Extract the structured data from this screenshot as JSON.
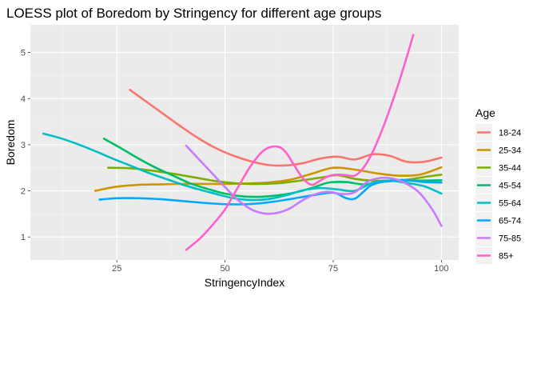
{
  "chart_data": {
    "type": "line",
    "title": "LOESS plot of Boredom by Stringency for different age groups",
    "xlabel": "StringencyIndex",
    "ylabel": "Boredom",
    "xlim": [
      5,
      104
    ],
    "ylim": [
      0.5,
      5.6
    ],
    "x_ticks": [
      25,
      50,
      75,
      100
    ],
    "y_ticks": [
      1,
      2,
      3,
      4,
      5
    ],
    "grid": true,
    "legend_title": "Age",
    "legend_position": "right",
    "series": [
      {
        "name": "18-24",
        "color": "#F8766D",
        "x": [
          28,
          32,
          36,
          40,
          44,
          48,
          52,
          56,
          60,
          64,
          68,
          72,
          76,
          80,
          84,
          88,
          92,
          96,
          100
        ],
        "y": [
          4.19,
          3.92,
          3.65,
          3.38,
          3.13,
          2.92,
          2.76,
          2.64,
          2.56,
          2.55,
          2.6,
          2.7,
          2.74,
          2.68,
          2.79,
          2.76,
          2.63,
          2.63,
          2.72
        ]
      },
      {
        "name": "25-34",
        "color": "#CD9600",
        "x": [
          20,
          25,
          30,
          35,
          40,
          45,
          50,
          55,
          60,
          65,
          70,
          75,
          80,
          85,
          90,
          95,
          100
        ],
        "y": [
          2.0,
          2.09,
          2.13,
          2.14,
          2.15,
          2.15,
          2.15,
          2.16,
          2.18,
          2.24,
          2.37,
          2.5,
          2.46,
          2.38,
          2.33,
          2.35,
          2.51
        ]
      },
      {
        "name": "35-44",
        "color": "#7CAE00",
        "x": [
          23,
          28,
          33,
          38,
          43,
          48,
          53,
          58,
          63,
          68,
          73,
          76,
          80,
          84,
          88,
          92,
          96,
          100
        ],
        "y": [
          2.5,
          2.49,
          2.44,
          2.37,
          2.29,
          2.21,
          2.16,
          2.15,
          2.17,
          2.23,
          2.3,
          2.34,
          2.26,
          2.22,
          2.22,
          2.24,
          2.3,
          2.35
        ]
      },
      {
        "name": "45-54",
        "color": "#00BE67",
        "x": [
          22,
          26,
          30,
          34,
          38,
          42,
          46,
          50,
          54,
          58,
          62,
          66,
          70,
          74,
          78,
          82,
          86,
          90,
          94,
          100
        ],
        "y": [
          3.13,
          2.92,
          2.7,
          2.5,
          2.33,
          2.16,
          2.04,
          1.94,
          1.88,
          1.87,
          1.9,
          1.96,
          2.06,
          2.18,
          2.19,
          2.14,
          2.19,
          2.22,
          2.22,
          2.23
        ]
      },
      {
        "name": "55-64",
        "color": "#00BFC4",
        "x": [
          8,
          12,
          16,
          20,
          24,
          28,
          32,
          36,
          40,
          44,
          48,
          52,
          56,
          60,
          64,
          68,
          72,
          76,
          80,
          84,
          88,
          92,
          96,
          100
        ],
        "y": [
          3.24,
          3.14,
          3.01,
          2.86,
          2.7,
          2.55,
          2.4,
          2.27,
          2.14,
          2.03,
          1.93,
          1.84,
          1.8,
          1.82,
          1.9,
          2.01,
          2.06,
          2.03,
          2.0,
          2.17,
          2.22,
          2.17,
          2.1,
          1.94
        ]
      },
      {
        "name": "65-74",
        "color": "#00A9FF",
        "x": [
          21,
          25,
          30,
          35,
          40,
          45,
          50,
          55,
          60,
          65,
          70,
          75,
          78,
          80,
          82,
          84,
          88,
          92,
          96,
          100
        ],
        "y": [
          1.81,
          1.84,
          1.84,
          1.82,
          1.78,
          1.74,
          1.71,
          1.71,
          1.75,
          1.82,
          1.9,
          1.96,
          1.84,
          1.83,
          1.98,
          2.13,
          2.22,
          2.23,
          2.19,
          2.18
        ]
      },
      {
        "name": "75-85",
        "color": "#C77CFF",
        "x": [
          41,
          44,
          47,
          50,
          53,
          56,
          59,
          62,
          65,
          68,
          71,
          74,
          77,
          80,
          83,
          86,
          89,
          92,
          95,
          98,
          100
        ],
        "y": [
          2.98,
          2.68,
          2.38,
          2.08,
          1.8,
          1.6,
          1.51,
          1.52,
          1.62,
          1.8,
          1.93,
          1.98,
          1.93,
          1.97,
          2.2,
          2.28,
          2.26,
          2.15,
          1.95,
          1.58,
          1.24
        ]
      },
      {
        "name": "85+",
        "color": "#FF61CC",
        "x": [
          41,
          44,
          47,
          50,
          53,
          56,
          59,
          62,
          64,
          66,
          68,
          70,
          72,
          74,
          76,
          78,
          80,
          82,
          84,
          86,
          88,
          90,
          92,
          93.5
        ],
        "y": [
          0.72,
          0.95,
          1.25,
          1.6,
          2.08,
          2.55,
          2.88,
          2.96,
          2.84,
          2.55,
          2.27,
          2.13,
          2.22,
          2.32,
          2.35,
          2.34,
          2.33,
          2.5,
          2.82,
          3.25,
          3.75,
          4.3,
          4.9,
          5.38
        ]
      }
    ]
  }
}
